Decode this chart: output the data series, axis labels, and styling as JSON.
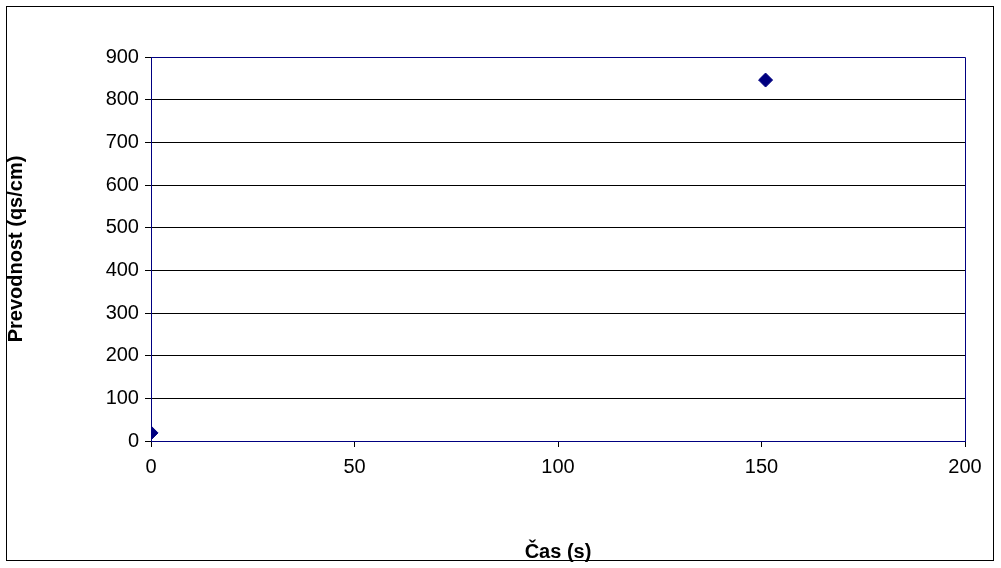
{
  "chart_data": {
    "type": "scatter",
    "xlabel": "Čas (s)",
    "ylabel": "Prevodnost (qs/cm)",
    "x": [
      0,
      151
    ],
    "series": [
      {
        "color": "#000080",
        "values": [
          19,
          846
        ]
      }
    ],
    "xlim": [
      0,
      200
    ],
    "xticks": [
      0,
      50,
      100,
      150,
      200
    ],
    "ylim": [
      0,
      900
    ],
    "yticks": [
      0,
      100,
      200,
      300,
      400,
      500,
      600,
      700,
      800,
      900
    ],
    "grid": "y",
    "legend": false,
    "marker": "diamond"
  }
}
